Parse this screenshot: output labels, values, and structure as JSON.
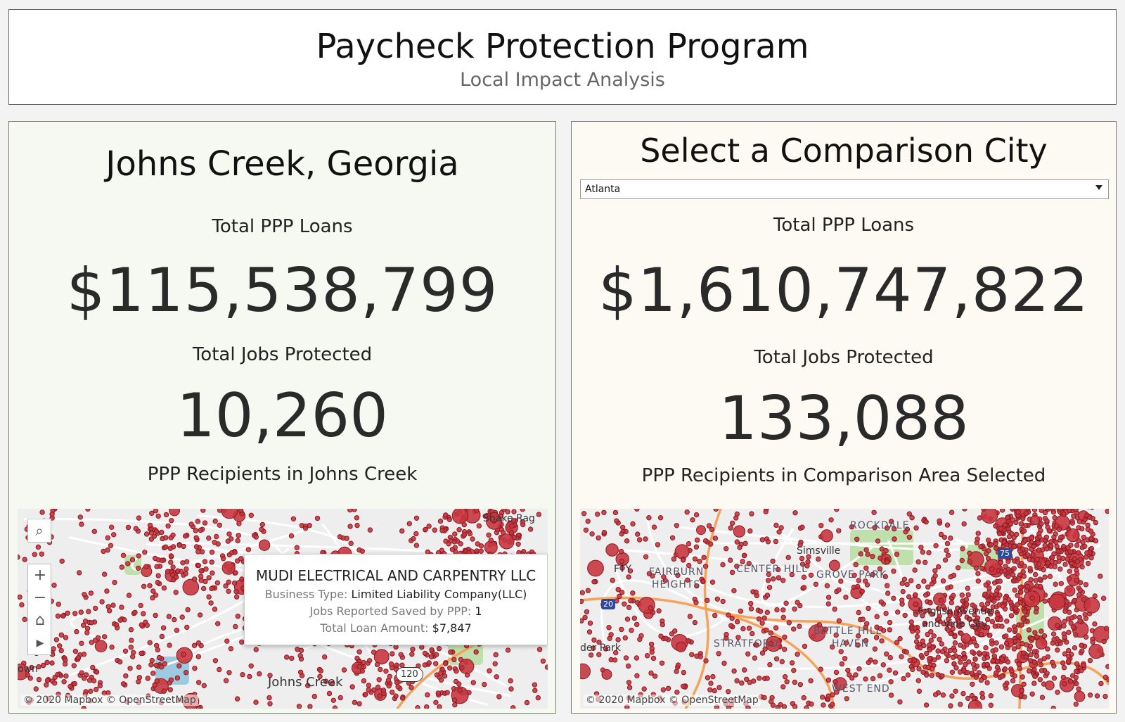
{
  "header": {
    "title": "Paycheck Protection Program",
    "subtitle": "Local Impact Analysis"
  },
  "left": {
    "city_title": "Johns Creek, Georgia",
    "loans_label": "Total PPP Loans",
    "loans_value": "$115,538,799",
    "jobs_label": "Total Jobs Protected",
    "jobs_value": "10,260",
    "recipients_label": "PPP Recipients in Johns Creek",
    "map": {
      "attribution": "© 2020 Mapbox  © OpenStreetMap",
      "labels": [
        "Shake Rag",
        "Johns Creek",
        "own",
        "120"
      ],
      "tools": [
        "search-icon",
        "zoom-in-icon",
        "zoom-out-icon",
        "home-icon",
        "play-icon"
      ],
      "tooltip": {
        "name": "MUDI ELECTRICAL AND CARPENTRY LLC",
        "business_type_label": "Business Type:",
        "business_type_value": "Limited  Liability Company(LLC)",
        "jobs_label": "Jobs Reported Saved by PPP:",
        "jobs_value": "1",
        "loan_label": "Total Loan Amount:",
        "loan_value": "$7,847"
      }
    }
  },
  "right": {
    "city_title": "Select a Comparison City",
    "dropdown_value": "Atlanta",
    "loans_label": "Total PPP Loans",
    "loans_value": "$1,610,747,822",
    "jobs_label": "Total Jobs Protected",
    "jobs_value": "133,088",
    "recipients_label": "PPP Recipients in Comparison Area Selected",
    "map": {
      "attribution": "© 2020 Mapbox  © OpenStreetMap",
      "labels": [
        "FTY",
        "FAIRBURN",
        "HEIGHTS",
        "CENTER HILL",
        "Simsville",
        "GROVE PARK",
        "ROCKDALE",
        "English Avenue",
        "and Vine City",
        "BATTLE HILL",
        "HAVEN",
        "STRATFORD",
        "der Park",
        "WEST END",
        "20",
        "75"
      ]
    }
  },
  "colors": {
    "dot_fill": "#c9363f",
    "dot_stroke": "#8a1a22",
    "park_green": "#bfe0ad",
    "water_blue": "#9ecae1",
    "road_orange": "#f6a25a"
  }
}
